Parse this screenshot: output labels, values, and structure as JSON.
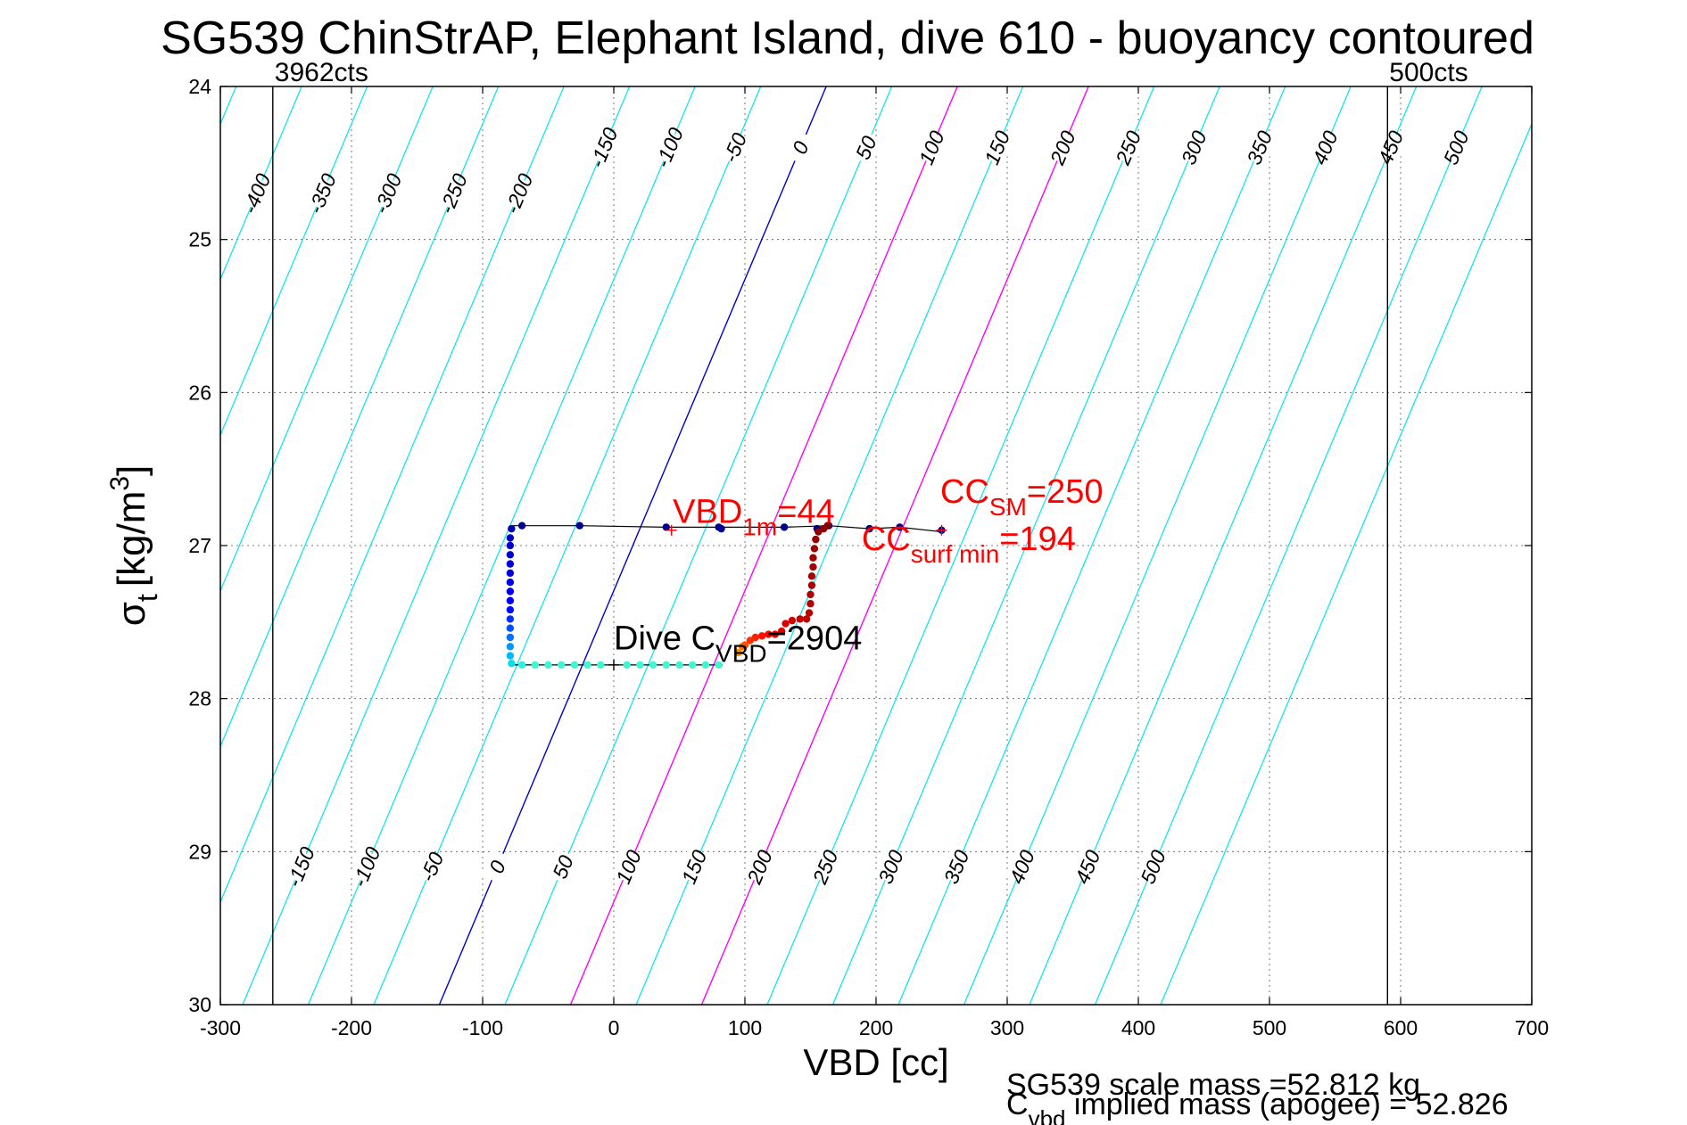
{
  "chart_data": {
    "type": "scatter",
    "title": "SG539 ChinStrAP, Elephant Island, dive 610 - buoyancy contoured",
    "xlabel": "VBD [cc]",
    "ylabel_main": "σ",
    "ylabel_sub": "t",
    "ylabel_units": "[kg/m",
    "ylabel_sup": "3",
    "ylabel_close": "]",
    "xlim": [
      -300,
      700
    ],
    "ylim": [
      24,
      30
    ],
    "y_reversed": true,
    "grid": true,
    "x_ticks": [
      -300,
      -200,
      -100,
      0,
      100,
      200,
      300,
      400,
      500,
      600,
      700
    ],
    "x_tick_labels": [
      "-300",
      "-200",
      "-100",
      "0",
      "100",
      "200",
      "300",
      "400",
      "500",
      "600",
      "700"
    ],
    "y_ticks": [
      24,
      25,
      26,
      27,
      28,
      29,
      30
    ],
    "y_tick_labels": [
      "24",
      "25",
      "26",
      "27",
      "28",
      "29",
      "30"
    ],
    "vbd_limit_lines": [
      {
        "x": -260,
        "label": "3962cts"
      },
      {
        "x": 590,
        "label": "500cts"
      }
    ],
    "buoyancy_contours": {
      "spacing_cc": 50,
      "values_from": -450,
      "values_to": 550,
      "x_at_sigma_30": -133,
      "x_at_sigma_24": 162,
      "highlight_zero_color": "#0000cc",
      "highlight_magenta_values": [
        100,
        200
      ],
      "highlight_magenta_color": "#ff00ff",
      "default_color": "#00e5ee",
      "top_labels": [
        "-400",
        "-350",
        "-300",
        "-250",
        "-200",
        "-150",
        "-100",
        "-50",
        "0",
        "50",
        "100",
        "150",
        "200",
        "250",
        "300",
        "350",
        "400",
        "450",
        "500"
      ],
      "top_label_values": [
        -400,
        -350,
        -300,
        -250,
        -200,
        -150,
        -100,
        -50,
        0,
        50,
        100,
        150,
        200,
        250,
        300,
        350,
        400,
        450,
        500
      ],
      "bottom_labels": [
        "-150",
        "-100",
        "-50",
        "0",
        "50",
        "100",
        "150",
        "200",
        "250",
        "300",
        "350",
        "400",
        "450",
        "500"
      ],
      "bottom_label_values": [
        -150,
        -100,
        -50,
        0,
        50,
        100,
        150,
        200,
        250,
        300,
        350,
        400,
        450,
        500
      ]
    },
    "series": [
      {
        "name": "",
        "kind": "scatter-trajectory",
        "points": [
          {
            "x": 250,
            "y": 26.9,
            "c": "#00008b"
          },
          {
            "x": 218,
            "y": 26.88,
            "c": "#00008b"
          },
          {
            "x": 195,
            "y": 26.89,
            "c": "#00008b"
          },
          {
            "x": 164,
            "y": 26.87,
            "c": "#00008b"
          },
          {
            "x": 155,
            "y": 26.89,
            "c": "#00008b"
          },
          {
            "x": 130,
            "y": 26.88,
            "c": "#00008b"
          },
          {
            "x": 82,
            "y": 26.89,
            "c": "#00008b"
          },
          {
            "x": 80,
            "y": 26.88,
            "c": "#00008b"
          },
          {
            "x": 40,
            "y": 26.88,
            "c": "#00008b"
          },
          {
            "x": -26,
            "y": 26.87,
            "c": "#00008b"
          },
          {
            "x": -70,
            "y": 26.87,
            "c": "#00008b"
          },
          {
            "x": -78,
            "y": 26.89,
            "c": "#0000b0"
          },
          {
            "x": -79,
            "y": 26.95,
            "c": "#0000c0"
          },
          {
            "x": -79,
            "y": 27.0,
            "c": "#0000c8"
          },
          {
            "x": -79,
            "y": 27.06,
            "c": "#0000cf"
          },
          {
            "x": -79,
            "y": 27.12,
            "c": "#0000d6"
          },
          {
            "x": -79,
            "y": 27.18,
            "c": "#0000dd"
          },
          {
            "x": -79,
            "y": 27.24,
            "c": "#0000e4"
          },
          {
            "x": -79,
            "y": 27.3,
            "c": "#0000eb"
          },
          {
            "x": -79,
            "y": 27.36,
            "c": "#0000f2"
          },
          {
            "x": -79,
            "y": 27.42,
            "c": "#0010ff"
          },
          {
            "x": -79,
            "y": 27.48,
            "c": "#0030ff"
          },
          {
            "x": -79,
            "y": 27.54,
            "c": "#0050ff"
          },
          {
            "x": -79,
            "y": 27.6,
            "c": "#0070ff"
          },
          {
            "x": -79,
            "y": 27.66,
            "c": "#0095ff"
          },
          {
            "x": -79,
            "y": 27.72,
            "c": "#00b8ff"
          },
          {
            "x": -78,
            "y": 27.77,
            "c": "#00e0f0"
          },
          {
            "x": -70,
            "y": 27.78,
            "c": "#30f0e0"
          },
          {
            "x": -60,
            "y": 27.78,
            "c": "#40f5d0"
          },
          {
            "x": -50,
            "y": 27.78,
            "c": "#40f5d0"
          },
          {
            "x": -40,
            "y": 27.78,
            "c": "#40f5d0"
          },
          {
            "x": -30,
            "y": 27.78,
            "c": "#40f5d0"
          },
          {
            "x": -20,
            "y": 27.78,
            "c": "#40f5d0"
          },
          {
            "x": -10,
            "y": 27.78,
            "c": "#40f5d0"
          },
          {
            "x": 10,
            "y": 27.78,
            "c": "#40f5d0"
          },
          {
            "x": 20,
            "y": 27.78,
            "c": "#40f5d0"
          },
          {
            "x": 30,
            "y": 27.78,
            "c": "#40f5d0"
          },
          {
            "x": 40,
            "y": 27.78,
            "c": "#40f5d0"
          },
          {
            "x": 50,
            "y": 27.78,
            "c": "#40f5d0"
          },
          {
            "x": 60,
            "y": 27.78,
            "c": "#40f5d0"
          },
          {
            "x": 70,
            "y": 27.78,
            "c": "#40f5d0"
          },
          {
            "x": 80,
            "y": 27.78,
            "c": "#40f5d0"
          },
          {
            "x": 95,
            "y": 27.7,
            "c": "#ff8c00"
          },
          {
            "x": 98,
            "y": 27.66,
            "c": "#ff7000"
          },
          {
            "x": 100,
            "y": 27.65,
            "c": "#ff5000"
          },
          {
            "x": 104,
            "y": 27.62,
            "c": "#ff3000"
          },
          {
            "x": 108,
            "y": 27.6,
            "c": "#ff2000"
          },
          {
            "x": 113,
            "y": 27.59,
            "c": "#ff1000"
          },
          {
            "x": 118,
            "y": 27.58,
            "c": "#ff0000"
          },
          {
            "x": 123,
            "y": 27.58,
            "c": "#f00000"
          },
          {
            "x": 128,
            "y": 27.56,
            "c": "#e00000"
          },
          {
            "x": 131,
            "y": 27.51,
            "c": "#d80000"
          },
          {
            "x": 136,
            "y": 27.49,
            "c": "#d00000"
          },
          {
            "x": 142,
            "y": 27.48,
            "c": "#c80000"
          },
          {
            "x": 147,
            "y": 27.48,
            "c": "#c00000"
          },
          {
            "x": 149,
            "y": 27.44,
            "c": "#b80000"
          },
          {
            "x": 150,
            "y": 27.38,
            "c": "#b40000"
          },
          {
            "x": 150,
            "y": 27.32,
            "c": "#b00000"
          },
          {
            "x": 151,
            "y": 27.26,
            "c": "#ac0000"
          },
          {
            "x": 151,
            "y": 27.2,
            "c": "#a80000"
          },
          {
            "x": 152,
            "y": 27.14,
            "c": "#a40000"
          },
          {
            "x": 152,
            "y": 27.08,
            "c": "#a00000"
          },
          {
            "x": 153,
            "y": 27.02,
            "c": "#9c0000"
          },
          {
            "x": 154,
            "y": 26.96,
            "c": "#980000"
          },
          {
            "x": 156,
            "y": 26.91,
            "c": "#900000"
          },
          {
            "x": 160,
            "y": 26.89,
            "c": "#880000"
          },
          {
            "x": 163,
            "y": 26.87,
            "c": "#800000"
          }
        ]
      }
    ],
    "surface_line": {
      "color": "#000000",
      "points": [
        [
          -79,
          26.87
        ],
        [
          -26,
          26.87
        ],
        [
          40,
          26.88
        ],
        [
          80,
          26.88
        ],
        [
          130,
          26.88
        ],
        [
          164,
          26.87
        ],
        [
          195,
          26.89
        ],
        [
          218,
          26.88
        ],
        [
          250,
          26.91
        ]
      ]
    },
    "dive_line": {
      "color": "#000000",
      "points": [
        [
          -79,
          27.78
        ],
        [
          83,
          27.78
        ]
      ]
    },
    "markers": [
      {
        "x": 44,
        "y": 26.9,
        "color": "#ff0000",
        "symbol": "+"
      },
      {
        "x": 250,
        "y": 26.9,
        "color": "#ff0000",
        "symbol": "+"
      },
      {
        "x": 0,
        "y": 27.78,
        "color": "#000000",
        "symbol": "+"
      }
    ],
    "annotations": [
      {
        "id": "vbd1m",
        "parts": [
          "VBD",
          "1m",
          "=44"
        ],
        "color": "#ff0000",
        "anchor_x": 45,
        "anchor_y": 26.85
      },
      {
        "id": "ccsm",
        "parts": [
          "CC",
          "SM",
          "=250"
        ],
        "color": "#ff0000",
        "anchor_x": 249,
        "anchor_y": 26.72
      },
      {
        "id": "ccsurf",
        "parts": [
          "CC",
          "surf min",
          "=194"
        ],
        "color": "#ff0000",
        "anchor_x": 189,
        "anchor_y": 27.03
      },
      {
        "id": "divec",
        "parts": [
          "Dive C",
          "VBD",
          "=2904"
        ],
        "color": "#000000",
        "anchor_x": 0,
        "anchor_y": 27.68
      }
    ],
    "footer": {
      "line1": "SG539 scale mass =52.812 kg",
      "line2_main": "C",
      "line2_sub": "vbd",
      "line2_rest": " implied mass (apogee) = 52.826"
    }
  }
}
